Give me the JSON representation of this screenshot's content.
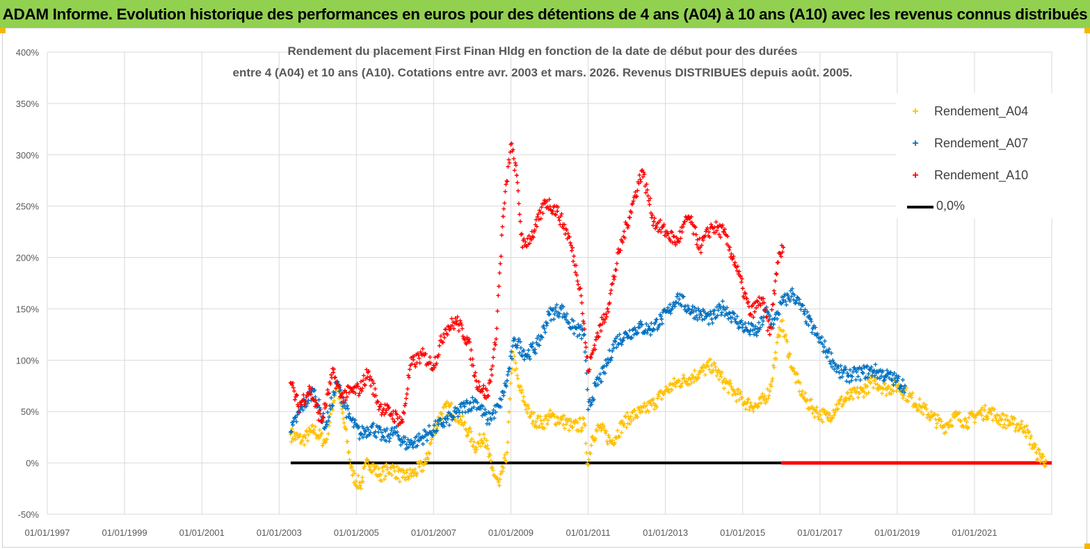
{
  "banner": {
    "title": "ADAM Informe. Evolution historique des performances en euros pour des détentions de 4 ans (A04) à 10 ans (A10) avec les revenus connus distribués"
  },
  "colors": {
    "banner_bg": "#92d050",
    "A04": "#ffc000",
    "A07": "#0070c0",
    "A10": "#ff0000",
    "zero_line": "#000000",
    "grid": "#d9d9d9"
  },
  "chart_data": {
    "type": "scatter",
    "title_lines": [
      "Rendement du placement First Finan Hldg  en fonction de la date de début pour des durées",
      "entre 4 (A04) et 10 ans (A10). Cotations entre avr. 2003 et mars. 2026. Revenus DISTRIBUES depuis août. 2005."
    ],
    "x_tick_labels": [
      "01/01/1997",
      "01/01/1999",
      "01/01/2001",
      "01/01/2003",
      "01/01/2005",
      "01/01/2007",
      "01/01/2009",
      "01/01/2011",
      "01/01/2013",
      "01/01/2015",
      "01/01/2017",
      "01/01/2019",
      "01/01/2021"
    ],
    "y_tick_labels": [
      "-50%",
      "0%",
      "50%",
      "100%",
      "150%",
      "200%",
      "250%",
      "300%",
      "350%",
      "400%"
    ],
    "xlim": [
      1997.0,
      2023.0
    ],
    "ylim": [
      -50,
      400
    ],
    "grid": true,
    "legend_position": "top-right",
    "series": [
      {
        "name": "Rendement_A04",
        "color": "#ffc000",
        "marker": "+",
        "x": [
          2003.3,
          2003.6,
          2003.9,
          2004.2,
          2004.5,
          2004.7,
          2004.9,
          2005.1,
          2005.3,
          2005.6,
          2005.9,
          2006.2,
          2006.5,
          2006.8,
          2007.0,
          2007.2,
          2007.4,
          2007.7,
          2007.9,
          2008.1,
          2008.3,
          2008.5,
          2008.7,
          2008.9,
          2009.05,
          2009.2,
          2009.5,
          2009.8,
          2010.0,
          2010.3,
          2010.6,
          2010.9,
          2011.0,
          2011.1,
          2011.3,
          2011.6,
          2011.9,
          2012.1,
          2012.4,
          2012.7,
          2013.0,
          2013.3,
          2013.6,
          2013.9,
          2014.2,
          2014.5,
          2014.8,
          2015.1,
          2015.4,
          2015.7,
          2016.0,
          2016.3,
          2016.6,
          2016.9,
          2017.2,
          2017.5,
          2017.8,
          2018.1,
          2018.4,
          2018.7,
          2019.0,
          2019.3,
          2019.6,
          2019.9,
          2020.2,
          2020.5,
          2020.8,
          2021.1,
          2021.4,
          2021.7,
          2022.0,
          2022.3,
          2022.6,
          2022.85
        ],
        "y": [
          28,
          22,
          32,
          20,
          78,
          35,
          -12,
          -22,
          2,
          -12,
          -5,
          -14,
          -10,
          0,
          30,
          48,
          55,
          42,
          30,
          15,
          28,
          -5,
          -22,
          10,
          108,
          75,
          45,
          38,
          45,
          42,
          35,
          38,
          -2,
          25,
          35,
          20,
          38,
          45,
          50,
          58,
          70,
          78,
          82,
          88,
          95,
          80,
          68,
          58,
          55,
          70,
          138,
          90,
          62,
          50,
          44,
          58,
          65,
          70,
          80,
          72,
          75,
          65,
          55,
          45,
          35,
          45,
          40,
          48,
          50,
          42,
          38,
          35,
          10,
          2
        ]
      },
      {
        "name": "Rendement_A07",
        "color": "#0070c0",
        "marker": "+",
        "x": [
          2003.3,
          2003.6,
          2003.9,
          2004.2,
          2004.5,
          2004.8,
          2005.1,
          2005.4,
          2005.7,
          2006.0,
          2006.3,
          2006.6,
          2006.9,
          2007.2,
          2007.5,
          2007.8,
          2008.1,
          2008.4,
          2008.7,
          2008.9,
          2009.1,
          2009.4,
          2009.7,
          2010.0,
          2010.3,
          2010.6,
          2010.9,
          2011.0,
          2011.2,
          2011.4,
          2011.7,
          2012.0,
          2012.3,
          2012.6,
          2012.9,
          2013.1,
          2013.3,
          2013.6,
          2013.9,
          2014.2,
          2014.5,
          2014.8,
          2015.1,
          2015.4,
          2015.6,
          2015.8,
          2016.0,
          2016.3,
          2016.6,
          2016.9,
          2017.2,
          2017.5,
          2017.8,
          2018.1,
          2018.4,
          2018.7,
          2019.0,
          2019.2
        ],
        "y": [
          30,
          55,
          70,
          35,
          78,
          45,
          28,
          35,
          25,
          30,
          18,
          22,
          30,
          38,
          45,
          55,
          60,
          42,
          55,
          80,
          120,
          105,
          115,
          145,
          150,
          132,
          125,
          52,
          75,
          88,
          118,
          125,
          132,
          130,
          140,
          148,
          162,
          150,
          145,
          140,
          152,
          140,
          130,
          128,
          148,
          135,
          155,
          165,
          145,
          125,
          108,
          88,
          85,
          88,
          90,
          85,
          80,
          75
        ]
      },
      {
        "name": "Rendement_A10",
        "color": "#ff0000",
        "marker": "+",
        "x": [
          2003.3,
          2003.5,
          2003.8,
          2004.1,
          2004.4,
          2004.6,
          2004.9,
          2005.1,
          2005.3,
          2005.6,
          2005.9,
          2006.2,
          2006.4,
          2006.7,
          2007.0,
          2007.3,
          2007.6,
          2007.9,
          2008.1,
          2008.4,
          2008.6,
          2008.8,
          2009.0,
          2009.15,
          2009.3,
          2009.6,
          2009.9,
          2010.2,
          2010.5,
          2010.8,
          2011.0,
          2011.2,
          2011.5,
          2011.8,
          2012.1,
          2012.4,
          2012.7,
          2013.0,
          2013.3,
          2013.6,
          2013.9,
          2014.2,
          2014.5,
          2014.8,
          2015.0,
          2015.2,
          2015.5,
          2015.7,
          2015.9,
          2016.05
        ],
        "y": [
          78,
          55,
          72,
          40,
          88,
          65,
          70,
          72,
          88,
          55,
          48,
          40,
          95,
          105,
          95,
          130,
          138,
          118,
          80,
          65,
          115,
          240,
          310,
          280,
          210,
          225,
          255,
          245,
          220,
          170,
          90,
          120,
          150,
          205,
          245,
          285,
          235,
          225,
          215,
          240,
          210,
          230,
          225,
          195,
          170,
          145,
          160,
          125,
          195,
          210
        ]
      },
      {
        "name": "0,0%",
        "color": "#000000",
        "marker": "line",
        "x": [
          2003.3,
          2023.0
        ],
        "y": [
          0,
          0
        ]
      }
    ],
    "zero_segment_red_from": 2016.0
  }
}
